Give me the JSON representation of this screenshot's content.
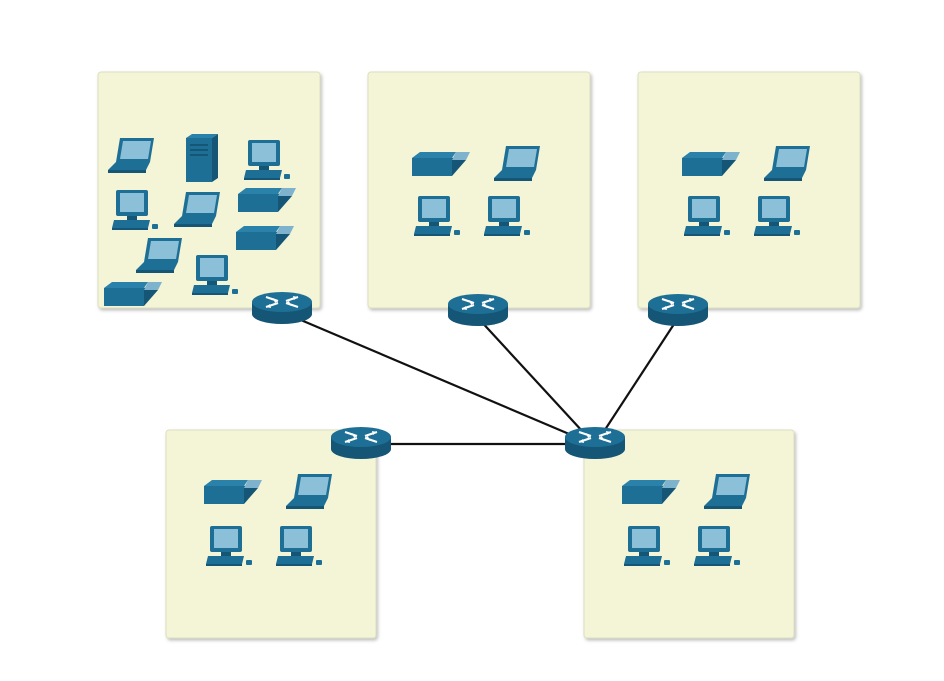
{
  "diagram": {
    "colors": {
      "device": "#1e6f96",
      "device_dark": "#155576",
      "device_light": "#7fb2cc",
      "screen": "#8cbfd8",
      "lan_box": "#f3f5d6",
      "link": "#111111"
    },
    "lans": [
      {
        "id": "lan-1",
        "devices": [
          "laptop-icon",
          "server-icon",
          "pc-icon",
          "pc-icon",
          "laptop-icon",
          "printer-icon",
          "laptop-icon",
          "printer-icon",
          "pc-icon",
          "printer-icon"
        ]
      },
      {
        "id": "lan-2",
        "devices": [
          "printer-icon",
          "laptop-icon",
          "pc-icon",
          "pc-icon"
        ]
      },
      {
        "id": "lan-3",
        "devices": [
          "printer-icon",
          "laptop-icon",
          "pc-icon",
          "pc-icon"
        ]
      },
      {
        "id": "lan-4",
        "devices": [
          "printer-icon",
          "laptop-icon",
          "pc-icon",
          "pc-icon"
        ]
      },
      {
        "id": "lan-5",
        "devices": [
          "printer-icon",
          "laptop-icon",
          "pc-icon",
          "pc-icon"
        ]
      }
    ],
    "routers": [
      "router-1",
      "router-2",
      "router-3",
      "router-4",
      "router-core"
    ],
    "links": [
      [
        "router-1",
        "router-core"
      ],
      [
        "router-2",
        "router-core"
      ],
      [
        "router-3",
        "router-core"
      ],
      [
        "router-4",
        "router-core"
      ]
    ]
  }
}
